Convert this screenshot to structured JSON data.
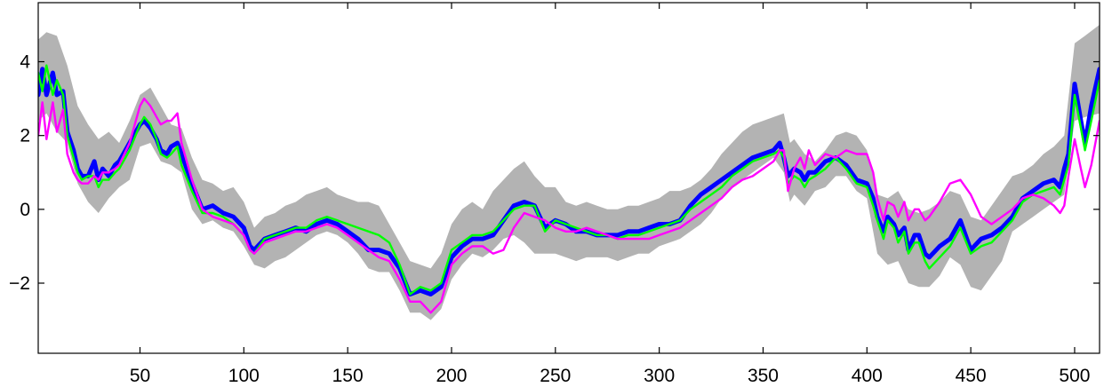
{
  "chart_data": {
    "type": "line",
    "title": "",
    "xlabel": "",
    "ylabel": "",
    "xlim": [
      1,
      512
    ],
    "ylim": [
      -3.9,
      5.6
    ],
    "x_ticks": [
      50,
      100,
      150,
      200,
      250,
      300,
      350,
      400,
      450,
      500
    ],
    "y_ticks": [
      -2,
      0,
      2,
      4
    ],
    "y_tick_labels": [
      "−2",
      "0",
      "2",
      "4"
    ],
    "grid": false,
    "legend": "none",
    "colors": {
      "band": "#b3b3b3",
      "blue": "#0000ff",
      "green": "#00ff00",
      "magenta": "#ff00ff"
    },
    "band": {
      "x": [
        1,
        5,
        10,
        15,
        20,
        25,
        30,
        35,
        40,
        45,
        50,
        55,
        60,
        65,
        70,
        75,
        80,
        85,
        90,
        95,
        100,
        105,
        110,
        115,
        120,
        125,
        130,
        135,
        140,
        145,
        150,
        155,
        160,
        165,
        170,
        175,
        180,
        185,
        190,
        195,
        200,
        205,
        210,
        215,
        220,
        225,
        230,
        235,
        240,
        245,
        250,
        255,
        260,
        265,
        270,
        275,
        280,
        285,
        290,
        295,
        300,
        305,
        310,
        315,
        320,
        325,
        330,
        335,
        340,
        345,
        350,
        355,
        360,
        363,
        365,
        370,
        375,
        380,
        385,
        390,
        395,
        400,
        405,
        410,
        415,
        420,
        425,
        430,
        435,
        440,
        445,
        450,
        455,
        460,
        465,
        470,
        475,
        480,
        485,
        490,
        495,
        500,
        505,
        512
      ],
      "upper": [
        4.6,
        4.8,
        4.7,
        3.9,
        2.8,
        2.3,
        1.9,
        2.1,
        1.8,
        2.4,
        3.1,
        3.3,
        2.8,
        2.3,
        2.2,
        1.4,
        0.8,
        0.7,
        0.5,
        0.6,
        0.2,
        -0.5,
        -0.2,
        -0.1,
        0.1,
        0.2,
        0.4,
        0.5,
        0.6,
        0.4,
        0.3,
        0.2,
        0.2,
        0.1,
        -0.4,
        -0.9,
        -1.4,
        -1.5,
        -1.6,
        -1.2,
        -0.4,
        0.0,
        0.2,
        0.0,
        0.5,
        0.8,
        1.1,
        1.3,
        0.9,
        0.6,
        0.6,
        0.2,
        0.1,
        0.2,
        0.1,
        0.0,
        0.0,
        0.1,
        0.1,
        0.2,
        0.3,
        0.5,
        0.5,
        0.6,
        0.8,
        1.1,
        1.5,
        1.8,
        2.1,
        2.3,
        2.4,
        2.5,
        2.6,
        1.8,
        1.9,
        1.5,
        1.3,
        1.6,
        2.0,
        2.1,
        2.0,
        1.6,
        0.4,
        0.3,
        0.5,
        0.0,
        -0.1,
        0.0,
        0.2,
        0.5,
        0.4,
        -0.2,
        -0.3,
        0.1,
        0.5,
        0.9,
        1.0,
        1.2,
        1.5,
        1.7,
        2.0,
        4.5,
        4.7,
        5.0
      ],
      "lower": [
        2.4,
        2.6,
        2.1,
        1.8,
        0.7,
        0.2,
        -0.1,
        0.3,
        0.6,
        0.8,
        1.7,
        1.8,
        1.3,
        1.2,
        1.0,
        0.0,
        -0.4,
        -0.3,
        -0.5,
        -0.6,
        -1.0,
        -1.5,
        -1.6,
        -1.4,
        -1.3,
        -1.1,
        -0.9,
        -0.7,
        -0.6,
        -0.7,
        -0.9,
        -1.2,
        -1.6,
        -1.7,
        -1.7,
        -2.2,
        -2.8,
        -2.8,
        -3.0,
        -2.7,
        -1.9,
        -1.5,
        -1.2,
        -1.3,
        -1.1,
        -0.8,
        -0.7,
        -0.9,
        -1.2,
        -1.2,
        -1.2,
        -1.3,
        -1.4,
        -1.3,
        -1.3,
        -1.3,
        -1.4,
        -1.3,
        -1.2,
        -1.2,
        -1.0,
        -0.9,
        -0.8,
        -0.6,
        -0.4,
        -0.1,
        0.3,
        0.6,
        0.8,
        1.0,
        1.2,
        1.4,
        1.0,
        0.2,
        0.4,
        0.1,
        0.5,
        0.6,
        0.9,
        0.9,
        0.5,
        0.3,
        -1.2,
        -1.5,
        -1.4,
        -2.0,
        -2.1,
        -2.1,
        -1.8,
        -1.3,
        -1.5,
        -2.1,
        -2.2,
        -1.8,
        -1.4,
        -0.6,
        -0.4,
        -0.2,
        0.0,
        0.2,
        0.4,
        2.4,
        2.5,
        2.6
      ]
    },
    "series": [
      {
        "color": "blue",
        "line_width": 5,
        "x": [
          1,
          3,
          5,
          8,
          10,
          13,
          15,
          18,
          20,
          22,
          25,
          28,
          30,
          32,
          35,
          38,
          40,
          45,
          50,
          52,
          55,
          58,
          60,
          63,
          65,
          68,
          70,
          75,
          80,
          85,
          90,
          95,
          100,
          103,
          105,
          110,
          115,
          120,
          125,
          130,
          135,
          140,
          145,
          150,
          155,
          160,
          165,
          170,
          175,
          180,
          185,
          190,
          195,
          200,
          205,
          210,
          215,
          220,
          225,
          230,
          235,
          240,
          245,
          250,
          255,
          260,
          265,
          270,
          275,
          280,
          285,
          290,
          295,
          300,
          305,
          310,
          315,
          320,
          325,
          330,
          335,
          340,
          345,
          350,
          355,
          358,
          360,
          362,
          365,
          368,
          370,
          372,
          375,
          380,
          385,
          390,
          395,
          400,
          403,
          405,
          408,
          410,
          413,
          415,
          418,
          420,
          423,
          425,
          428,
          430,
          435,
          440,
          445,
          450,
          455,
          460,
          465,
          470,
          475,
          480,
          485,
          490,
          493,
          495,
          497,
          500,
          503,
          505,
          508,
          512
        ],
        "y": [
          3.1,
          3.8,
          3.1,
          3.7,
          3.1,
          3.2,
          2.1,
          1.6,
          1.1,
          0.9,
          0.9,
          1.3,
          0.8,
          1.1,
          0.9,
          1.2,
          1.3,
          1.8,
          2.3,
          2.4,
          2.2,
          1.9,
          1.6,
          1.5,
          1.7,
          1.8,
          1.5,
          0.7,
          0.0,
          0.1,
          -0.1,
          -0.2,
          -0.5,
          -1.0,
          -1.1,
          -0.8,
          -0.7,
          -0.6,
          -0.5,
          -0.6,
          -0.4,
          -0.3,
          -0.4,
          -0.6,
          -0.8,
          -1.1,
          -1.1,
          -1.2,
          -1.6,
          -2.3,
          -2.2,
          -2.3,
          -2.1,
          -1.3,
          -1.0,
          -0.8,
          -0.8,
          -0.7,
          -0.3,
          0.1,
          0.2,
          0.1,
          -0.5,
          -0.3,
          -0.4,
          -0.6,
          -0.6,
          -0.7,
          -0.7,
          -0.7,
          -0.6,
          -0.6,
          -0.5,
          -0.4,
          -0.4,
          -0.3,
          0.1,
          0.4,
          0.6,
          0.8,
          1.0,
          1.2,
          1.4,
          1.5,
          1.6,
          1.8,
          1.4,
          0.9,
          1.1,
          1.0,
          0.8,
          1.0,
          1.0,
          1.3,
          1.4,
          1.2,
          0.8,
          0.7,
          0.3,
          -0.2,
          -0.6,
          -0.2,
          -0.4,
          -0.7,
          -0.5,
          -1.1,
          -0.7,
          -0.7,
          -1.2,
          -1.3,
          -1.0,
          -0.8,
          -0.3,
          -1.1,
          -0.8,
          -0.7,
          -0.5,
          -0.2,
          0.3,
          0.5,
          0.7,
          0.8,
          0.6,
          1.1,
          1.5,
          3.4,
          2.4,
          1.8,
          2.8,
          3.8
        ]
      },
      {
        "color": "green",
        "line_width": 2.4,
        "x": [
          1,
          3,
          5,
          8,
          10,
          13,
          15,
          18,
          20,
          22,
          25,
          28,
          30,
          32,
          35,
          38,
          40,
          45,
          50,
          52,
          55,
          58,
          60,
          63,
          65,
          68,
          70,
          75,
          80,
          85,
          90,
          95,
          100,
          103,
          105,
          110,
          115,
          120,
          125,
          130,
          135,
          140,
          145,
          150,
          155,
          160,
          165,
          170,
          175,
          180,
          185,
          190,
          195,
          200,
          205,
          210,
          215,
          220,
          225,
          230,
          235,
          240,
          245,
          250,
          255,
          260,
          265,
          270,
          275,
          280,
          285,
          290,
          295,
          300,
          305,
          310,
          315,
          320,
          325,
          330,
          335,
          340,
          345,
          350,
          355,
          358,
          360,
          362,
          365,
          368,
          370,
          372,
          375,
          380,
          385,
          390,
          395,
          400,
          403,
          405,
          408,
          410,
          413,
          415,
          418,
          420,
          423,
          425,
          428,
          430,
          435,
          440,
          445,
          450,
          455,
          460,
          465,
          470,
          475,
          480,
          485,
          490,
          493,
          495,
          497,
          500,
          503,
          505,
          508,
          512
        ],
        "y": [
          3.7,
          3.2,
          3.9,
          3.1,
          3.5,
          3.1,
          2.0,
          1.4,
          1.0,
          0.8,
          0.9,
          0.9,
          0.6,
          0.8,
          0.8,
          1.0,
          1.1,
          1.6,
          2.3,
          2.5,
          2.3,
          1.9,
          1.5,
          1.4,
          1.5,
          1.7,
          1.2,
          0.5,
          -0.1,
          -0.1,
          -0.2,
          -0.4,
          -0.7,
          -1.1,
          -1.2,
          -0.8,
          -0.7,
          -0.6,
          -0.5,
          -0.5,
          -0.3,
          -0.2,
          -0.3,
          -0.4,
          -0.5,
          -0.6,
          -0.7,
          -0.9,
          -1.5,
          -2.3,
          -2.1,
          -2.2,
          -2.0,
          -1.1,
          -0.9,
          -0.7,
          -0.7,
          -0.6,
          -0.3,
          0.0,
          0.1,
          0.1,
          -0.6,
          -0.3,
          -0.4,
          -0.5,
          -0.6,
          -0.7,
          -0.7,
          -0.8,
          -0.7,
          -0.7,
          -0.6,
          -0.5,
          -0.4,
          -0.3,
          0.0,
          0.2,
          0.4,
          0.6,
          0.9,
          1.1,
          1.3,
          1.4,
          1.5,
          1.6,
          1.4,
          0.7,
          0.9,
          0.8,
          0.6,
          0.8,
          0.9,
          1.1,
          1.4,
          1.1,
          0.7,
          0.6,
          0.1,
          -0.3,
          -0.8,
          -0.3,
          -0.5,
          -0.9,
          -0.6,
          -1.2,
          -0.9,
          -0.9,
          -1.4,
          -1.6,
          -1.3,
          -1.0,
          -0.5,
          -1.2,
          -1.0,
          -0.9,
          -0.6,
          -0.3,
          0.2,
          0.4,
          0.5,
          0.6,
          0.4,
          0.8,
          1.2,
          3.1,
          2.2,
          1.6,
          2.4,
          3.5
        ]
      },
      {
        "color": "magenta",
        "line_width": 2.4,
        "x": [
          1,
          3,
          5,
          8,
          10,
          13,
          15,
          18,
          20,
          22,
          25,
          28,
          30,
          32,
          35,
          38,
          40,
          45,
          50,
          52,
          55,
          58,
          60,
          63,
          65,
          68,
          70,
          75,
          80,
          85,
          90,
          95,
          100,
          103,
          105,
          110,
          115,
          120,
          125,
          130,
          135,
          140,
          145,
          150,
          155,
          160,
          165,
          170,
          175,
          180,
          185,
          190,
          195,
          200,
          205,
          210,
          215,
          220,
          225,
          230,
          235,
          240,
          245,
          250,
          255,
          260,
          265,
          270,
          275,
          280,
          285,
          290,
          295,
          300,
          305,
          310,
          315,
          320,
          325,
          330,
          335,
          340,
          345,
          350,
          355,
          358,
          360,
          362,
          365,
          368,
          370,
          372,
          375,
          380,
          385,
          390,
          395,
          400,
          403,
          405,
          408,
          410,
          413,
          415,
          418,
          420,
          423,
          425,
          428,
          430,
          435,
          440,
          445,
          450,
          455,
          460,
          465,
          470,
          475,
          480,
          485,
          490,
          493,
          495,
          497,
          500,
          503,
          505,
          508,
          512
        ],
        "y": [
          2.0,
          2.9,
          1.9,
          2.9,
          2.1,
          2.7,
          1.5,
          1.0,
          0.8,
          0.7,
          0.7,
          0.9,
          0.8,
          1.0,
          1.0,
          1.1,
          1.2,
          1.8,
          2.8,
          3.0,
          2.8,
          2.5,
          2.3,
          2.4,
          2.4,
          2.6,
          1.8,
          0.8,
          0.0,
          -0.2,
          -0.3,
          -0.4,
          -0.7,
          -1.1,
          -1.2,
          -0.9,
          -0.8,
          -0.7,
          -0.6,
          -0.6,
          -0.5,
          -0.4,
          -0.5,
          -0.7,
          -0.9,
          -1.1,
          -1.3,
          -1.4,
          -1.9,
          -2.5,
          -2.5,
          -2.8,
          -2.5,
          -1.5,
          -1.2,
          -1.0,
          -1.0,
          -1.2,
          -1.1,
          -0.5,
          -0.1,
          -0.2,
          -0.3,
          -0.5,
          -0.6,
          -0.6,
          -0.5,
          -0.6,
          -0.7,
          -0.8,
          -0.8,
          -0.8,
          -0.8,
          -0.7,
          -0.6,
          -0.5,
          -0.3,
          -0.1,
          0.1,
          0.3,
          0.6,
          0.8,
          0.9,
          1.1,
          1.3,
          1.6,
          1.6,
          0.5,
          1.1,
          1.4,
          1.1,
          1.6,
          1.2,
          1.5,
          1.4,
          1.6,
          1.5,
          1.5,
          1.0,
          0.3,
          -0.3,
          0.2,
          0.1,
          -0.2,
          0.2,
          -0.3,
          0.0,
          0.0,
          -0.3,
          -0.2,
          0.2,
          0.7,
          0.8,
          0.4,
          -0.2,
          -0.4,
          -0.2,
          0.0,
          0.3,
          0.4,
          0.3,
          0.1,
          -0.1,
          0.1,
          0.9,
          1.9,
          1.1,
          0.6,
          1.2,
          2.4
        ]
      }
    ]
  }
}
